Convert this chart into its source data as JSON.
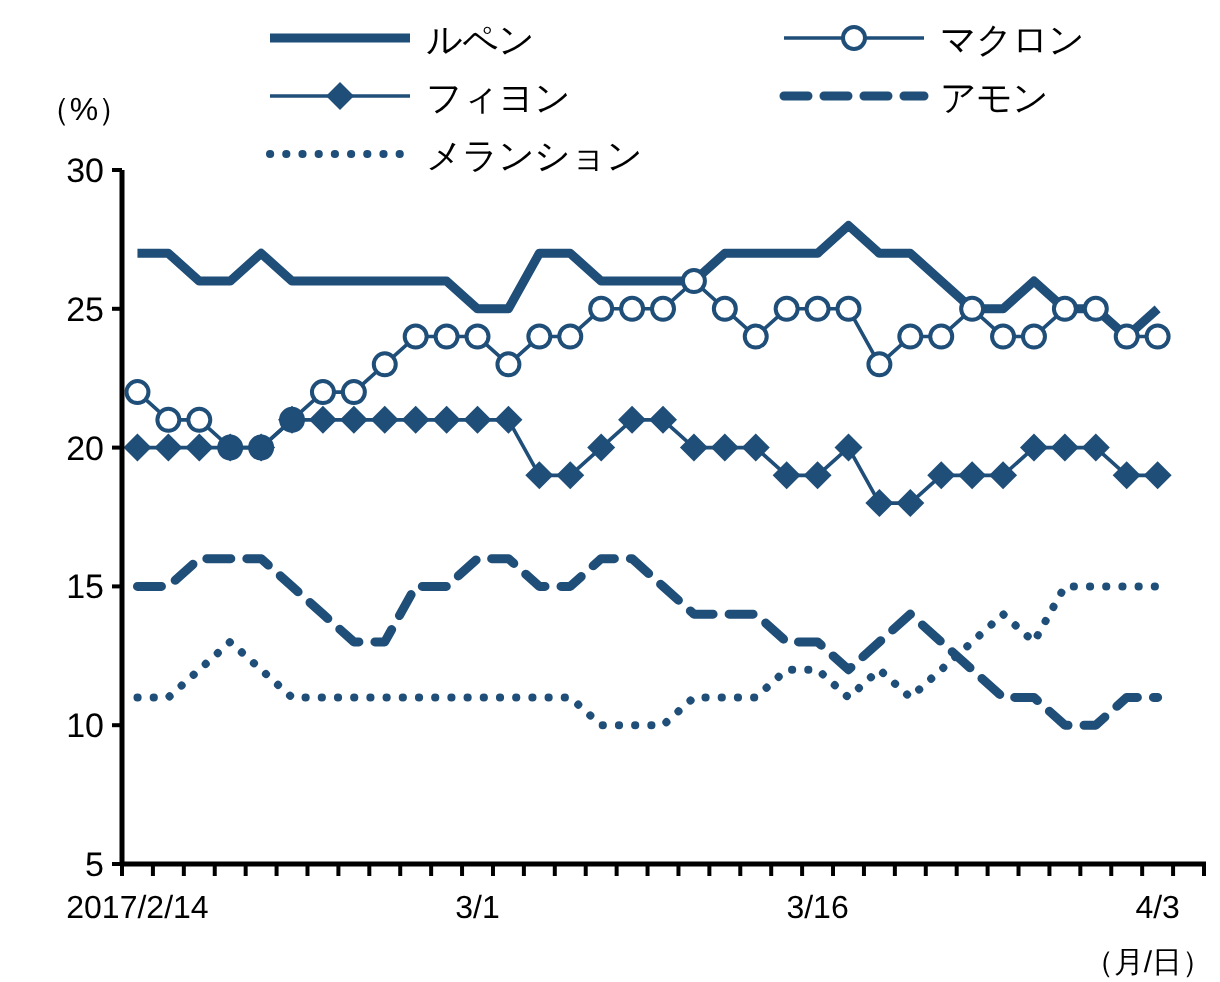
{
  "chart_data": {
    "type": "line",
    "ylabel": "（%）",
    "xlabel": "（月/日）",
    "ylim": [
      5,
      30
    ],
    "yticks": [
      5,
      10,
      15,
      20,
      25,
      30
    ],
    "legend": "top",
    "grid": false,
    "categories": [
      "2017/2/14",
      null,
      null,
      null,
      null,
      null,
      null,
      null,
      null,
      null,
      null,
      "3/1",
      null,
      null,
      null,
      null,
      null,
      null,
      null,
      null,
      null,
      null,
      "3/16",
      null,
      null,
      null,
      null,
      null,
      null,
      null,
      null,
      null,
      null,
      "4/3",
      null
    ],
    "series": [
      {
        "name": "ルペン",
        "color": "#1f4e79",
        "marker": "none",
        "line_style": "solid",
        "values": [
          27,
          27,
          26,
          26,
          27,
          26,
          26,
          26,
          26,
          26,
          26,
          25,
          25,
          27,
          27,
          26,
          26,
          26,
          26,
          27,
          27,
          27,
          27,
          28,
          27,
          27,
          26,
          25,
          25,
          26,
          25,
          25,
          24,
          25,
          null
        ]
      },
      {
        "name": "マクロン",
        "color": "#1f4e79",
        "marker": "circle",
        "line_style": "solid",
        "values": [
          22,
          21,
          21,
          20,
          20,
          21,
          22,
          22,
          23,
          24,
          24,
          24,
          23,
          24,
          24,
          25,
          25,
          25,
          26,
          25,
          24,
          25,
          25,
          25,
          23,
          24,
          24,
          25,
          24,
          24,
          25,
          25,
          24,
          24,
          null
        ]
      },
      {
        "name": "フィヨン",
        "color": "#1f4e79",
        "marker": "diamond",
        "line_style": "solid",
        "values": [
          20,
          20,
          20,
          20,
          20,
          21,
          21,
          21,
          21,
          21,
          21,
          21,
          21,
          19,
          19,
          20,
          21,
          21,
          20,
          20,
          20,
          19,
          19,
          20,
          18,
          18,
          19,
          19,
          19,
          20,
          20,
          20,
          19,
          19,
          null
        ]
      },
      {
        "name": "アモン",
        "color": "#1f4e79",
        "marker": "none",
        "line_style": "dashed",
        "values": [
          15,
          15,
          16,
          16,
          16,
          15,
          14,
          13,
          13,
          15,
          15,
          16,
          16,
          15,
          15,
          16,
          16,
          15,
          14,
          14,
          14,
          13,
          13,
          12,
          13,
          14,
          13,
          12,
          11,
          11,
          10,
          10,
          11,
          11,
          null
        ]
      },
      {
        "name": "メランション",
        "color": "#1f4e79",
        "marker": "none",
        "line_style": "dotted",
        "values": [
          11,
          11,
          12,
          13,
          12,
          11,
          11,
          11,
          11,
          11,
          11,
          11,
          11,
          11,
          11,
          10,
          10,
          10,
          11,
          11,
          11,
          12,
          12,
          11,
          12,
          11,
          12,
          13,
          14,
          13,
          15,
          15,
          15,
          15,
          null
        ]
      }
    ]
  }
}
